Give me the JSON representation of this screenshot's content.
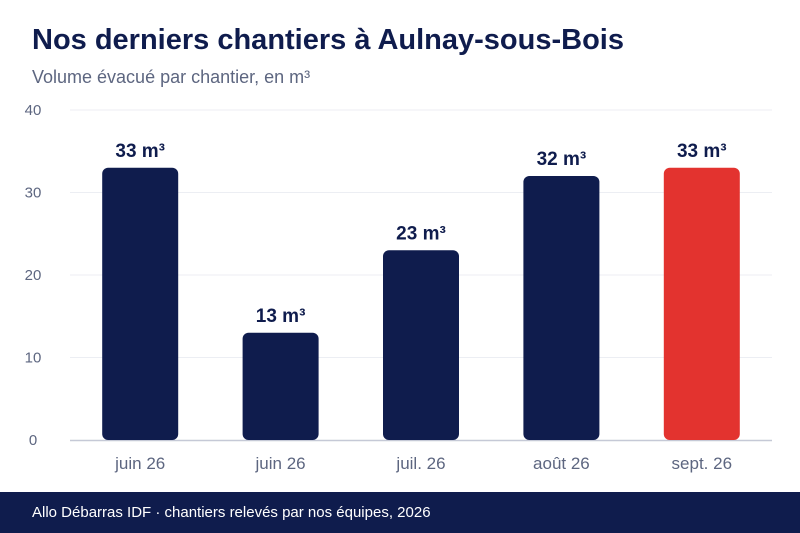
{
  "header": {
    "title": "Nos derniers chantiers à Aulnay-sous-Bois",
    "subtitle": "Volume évacué par chantier, en m³"
  },
  "footer": {
    "text": "Allo Débarras IDF · chantiers relevés par nos équipes, 2026"
  },
  "colors": {
    "bar": "#0f1c4d",
    "highlight": "#e3332f",
    "grid": "#eceef3",
    "axis": "#c5c9d6",
    "tick_text": "#5d6680",
    "label_text": "#0f1c4d"
  },
  "chart_data": {
    "type": "bar",
    "title": "Nos derniers chantiers à Aulnay-sous-Bois",
    "subtitle": "Volume évacué par chantier, en m³",
    "xlabel": "",
    "ylabel": "",
    "categories": [
      "juin 26",
      "juin 26",
      "juil. 26",
      "août 26",
      "sept. 26"
    ],
    "values": [
      33,
      13,
      23,
      32,
      33
    ],
    "data_labels": [
      "33 m³",
      "13 m³",
      "23 m³",
      "32 m³",
      "33 m³"
    ],
    "highlight_index": 4,
    "ylim": [
      0,
      40
    ],
    "yticks": [
      0,
      10,
      20,
      30,
      40
    ],
    "grid": true,
    "legend": "none"
  }
}
